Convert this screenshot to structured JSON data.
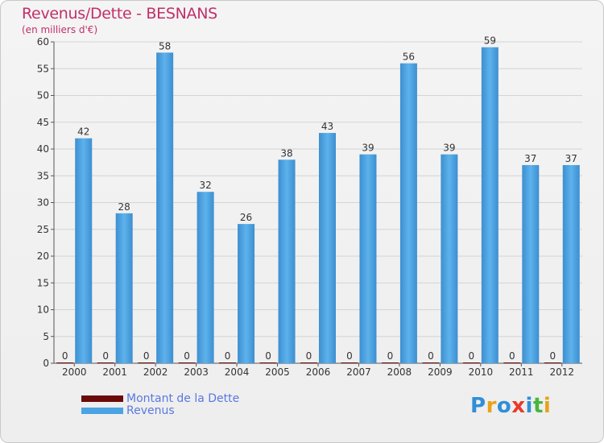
{
  "header": {
    "title": "Revenus/Dette - BESNANS",
    "subtitle": "(en milliers d'€)"
  },
  "legend": {
    "items": [
      {
        "label": "Montant de la Dette",
        "color": "#6b0a0a"
      },
      {
        "label": "Revenus",
        "color": "#4aa3e2"
      }
    ]
  },
  "logo": {
    "text": "Proxiti",
    "letters": [
      {
        "ch": "P",
        "color": "#2f8fd8"
      },
      {
        "ch": "r",
        "color": "#e8a21b"
      },
      {
        "ch": "o",
        "color": "#2f8fd8"
      },
      {
        "ch": "x",
        "color": "#e83a2a"
      },
      {
        "ch": "i",
        "color": "#2f8fd8"
      },
      {
        "ch": "t",
        "color": "#49b53c"
      },
      {
        "ch": "i",
        "color": "#e8a21b"
      }
    ]
  },
  "chart_data": {
    "type": "bar",
    "title": "Revenus/Dette - BESNANS",
    "subtitle": "(en milliers d'€)",
    "categories": [
      "2000",
      "2001",
      "2002",
      "2003",
      "2004",
      "2005",
      "2006",
      "2007",
      "2008",
      "2009",
      "2010",
      "2011",
      "2012"
    ],
    "series": [
      {
        "name": "Montant de la Dette",
        "color": "#6b0a0a",
        "values": [
          0,
          0,
          0,
          0,
          0,
          0,
          0,
          0,
          0,
          0,
          0,
          0,
          0
        ]
      },
      {
        "name": "Revenus",
        "color": "#4aa3e2",
        "values": [
          42,
          28,
          58,
          32,
          26,
          38,
          43,
          39,
          56,
          39,
          59,
          37,
          37
        ]
      }
    ],
    "ylim": [
      0,
      60
    ],
    "yticks": [
      0,
      5,
      10,
      15,
      20,
      25,
      30,
      35,
      40,
      45,
      50,
      55,
      60
    ],
    "grid": true,
    "legend_position": "bottom-left"
  }
}
